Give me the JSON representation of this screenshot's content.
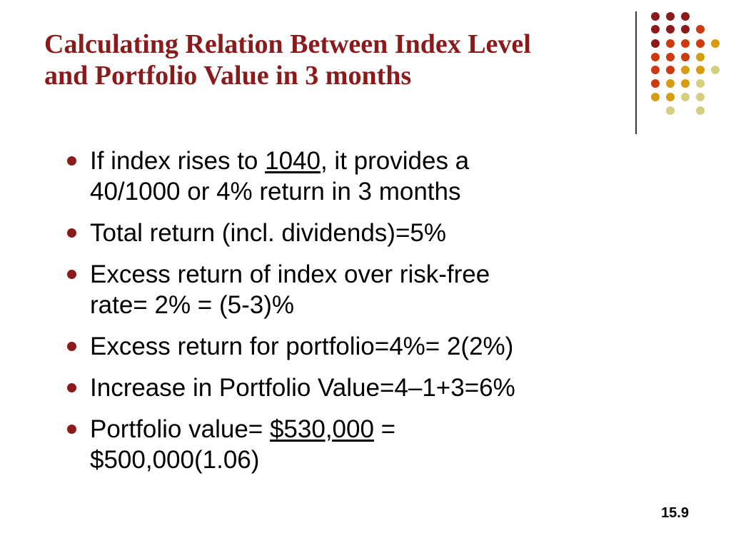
{
  "title": {
    "line1": "Calculating Relation Between Index Level",
    "line2": "and Portfolio Value in 3 months"
  },
  "bullets": [
    {
      "line1_pre": "If index rises to ",
      "line1_underline": "1040",
      "line1_post": ", it provides a",
      "line2": "40/1000 or 4% return in 3 months"
    },
    {
      "line1": "Total return (incl. dividends)=5%"
    },
    {
      "line1": "Excess return of index over risk-free",
      "line2": "rate= 2% = (5-3)%"
    },
    {
      "line1": "Excess return for portfolio=4%= 2(2%)"
    },
    {
      "line1": "Increase in Portfolio Value=4–1+3=6%"
    },
    {
      "line1_pre": "Portfolio value= ",
      "line1_underline": "$530,000",
      "line1_post": " =",
      "line2": "$500,000(1.06)"
    }
  ],
  "slide_number": "15.9",
  "colors": {
    "title": "#8b1a1a",
    "bullet": "#8b1a1a",
    "dot_palette": [
      "#8b1a1a",
      "#cc3a0e",
      "#d79b10",
      "#d4d080"
    ]
  }
}
